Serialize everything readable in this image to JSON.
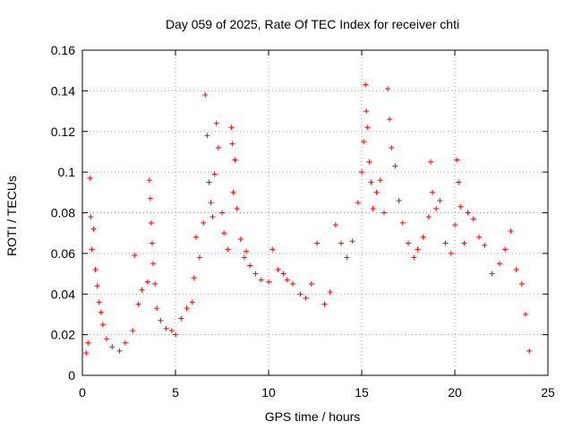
{
  "chart_data": {
    "type": "scatter",
    "title": "Day 059 of 2025, Rate Of TEC Index for receiver chti",
    "xlabel": "GPS time / hours",
    "ylabel": "ROTI / TECUs",
    "xlim": [
      0,
      25
    ],
    "ylim": [
      0,
      0.16
    ],
    "xticks": [
      0,
      5,
      10,
      15,
      20,
      25
    ],
    "yticks": [
      0,
      0.02,
      0.04,
      0.06,
      0.08,
      0.1,
      0.12,
      0.14,
      0.16
    ],
    "ytick_labels": [
      "0",
      "0.02",
      "0.04",
      "0.06",
      "0.08",
      "0.1",
      "0.12",
      "0.14",
      "0.16"
    ],
    "grid": true,
    "marker": "+",
    "color": "#ff0000",
    "series": [
      {
        "values_note_free": true,
        "points": [
          [
            0.2,
            0.011
          ],
          [
            0.3,
            0.016
          ],
          [
            0.4,
            0.097
          ],
          [
            0.45,
            0.078
          ],
          [
            0.5,
            0.062
          ],
          [
            0.6,
            0.072
          ],
          [
            0.7,
            0.052
          ],
          [
            0.8,
            0.044
          ],
          [
            0.9,
            0.036
          ],
          [
            1.0,
            0.031
          ],
          [
            1.1,
            0.025
          ],
          [
            1.3,
            0.018
          ],
          [
            1.6,
            0.014
          ],
          [
            2.0,
            0.012
          ],
          [
            2.3,
            0.016
          ],
          [
            2.7,
            0.022
          ],
          [
            2.8,
            0.059
          ],
          [
            3.0,
            0.035
          ],
          [
            3.2,
            0.042
          ],
          [
            3.5,
            0.046
          ],
          [
            3.6,
            0.096
          ],
          [
            3.65,
            0.087
          ],
          [
            3.7,
            0.075
          ],
          [
            3.75,
            0.065
          ],
          [
            3.8,
            0.055
          ],
          [
            3.9,
            0.045
          ],
          [
            4.0,
            0.033
          ],
          [
            4.2,
            0.027
          ],
          [
            4.5,
            0.023
          ],
          [
            4.8,
            0.022
          ],
          [
            5.0,
            0.02
          ],
          [
            5.3,
            0.028
          ],
          [
            5.6,
            0.033
          ],
          [
            5.9,
            0.036
          ],
          [
            6.0,
            0.048
          ],
          [
            6.1,
            0.068
          ],
          [
            6.3,
            0.058
          ],
          [
            6.5,
            0.075
          ],
          [
            6.6,
            0.138
          ],
          [
            6.7,
            0.118
          ],
          [
            6.8,
            0.095
          ],
          [
            6.9,
            0.085
          ],
          [
            7.0,
            0.078
          ],
          [
            7.1,
            0.099
          ],
          [
            7.2,
            0.124
          ],
          [
            7.3,
            0.112
          ],
          [
            7.5,
            0.08
          ],
          [
            7.6,
            0.07
          ],
          [
            7.8,
            0.062
          ],
          [
            8.0,
            0.122
          ],
          [
            8.05,
            0.114
          ],
          [
            8.1,
            0.09
          ],
          [
            8.2,
            0.106
          ],
          [
            8.3,
            0.082
          ],
          [
            8.5,
            0.067
          ],
          [
            8.7,
            0.058
          ],
          [
            8.8,
            0.061
          ],
          [
            9.0,
            0.054
          ],
          [
            9.3,
            0.05
          ],
          [
            9.6,
            0.047
          ],
          [
            10.0,
            0.046
          ],
          [
            10.2,
            0.062
          ],
          [
            10.5,
            0.052
          ],
          [
            10.8,
            0.05
          ],
          [
            11.0,
            0.047
          ],
          [
            11.3,
            0.045
          ],
          [
            11.7,
            0.04
          ],
          [
            12.0,
            0.038
          ],
          [
            12.3,
            0.045
          ],
          [
            12.6,
            0.065
          ],
          [
            13.0,
            0.035
          ],
          [
            13.3,
            0.041
          ],
          [
            13.6,
            0.074
          ],
          [
            13.9,
            0.065
          ],
          [
            14.2,
            0.058
          ],
          [
            14.5,
            0.066
          ],
          [
            14.8,
            0.085
          ],
          [
            15.0,
            0.1
          ],
          [
            15.1,
            0.115
          ],
          [
            15.2,
            0.143
          ],
          [
            15.25,
            0.13
          ],
          [
            15.3,
            0.122
          ],
          [
            15.4,
            0.105
          ],
          [
            15.5,
            0.095
          ],
          [
            15.6,
            0.082
          ],
          [
            15.8,
            0.09
          ],
          [
            16.0,
            0.096
          ],
          [
            16.2,
            0.08
          ],
          [
            16.4,
            0.141
          ],
          [
            16.5,
            0.126
          ],
          [
            16.6,
            0.112
          ],
          [
            16.8,
            0.103
          ],
          [
            17.0,
            0.086
          ],
          [
            17.2,
            0.075
          ],
          [
            17.5,
            0.065
          ],
          [
            17.8,
            0.058
          ],
          [
            18.0,
            0.062
          ],
          [
            18.3,
            0.068
          ],
          [
            18.6,
            0.078
          ],
          [
            18.7,
            0.105
          ],
          [
            18.8,
            0.09
          ],
          [
            19.0,
            0.082
          ],
          [
            19.2,
            0.086
          ],
          [
            19.5,
            0.065
          ],
          [
            19.8,
            0.06
          ],
          [
            20.0,
            0.074
          ],
          [
            20.1,
            0.106
          ],
          [
            20.2,
            0.095
          ],
          [
            20.3,
            0.083
          ],
          [
            20.5,
            0.065
          ],
          [
            20.7,
            0.08
          ],
          [
            21.0,
            0.077
          ],
          [
            21.3,
            0.068
          ],
          [
            21.6,
            0.064
          ],
          [
            22.0,
            0.05
          ],
          [
            22.4,
            0.055
          ],
          [
            22.7,
            0.062
          ],
          [
            23.0,
            0.071
          ],
          [
            23.3,
            0.052
          ],
          [
            23.6,
            0.045
          ],
          [
            23.8,
            0.03
          ],
          [
            24.0,
            0.012
          ]
        ]
      }
    ]
  }
}
